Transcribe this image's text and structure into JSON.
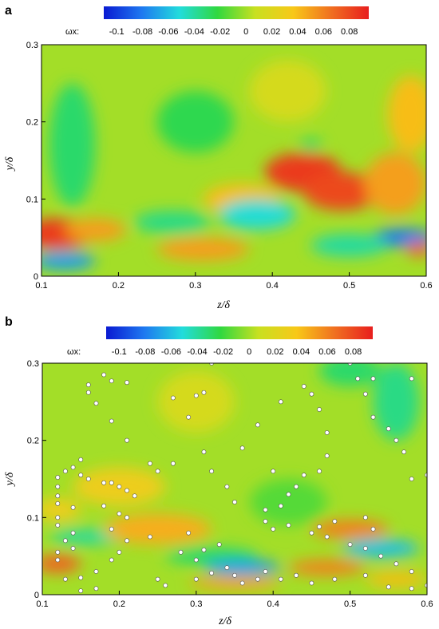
{
  "chart_data": [
    {
      "type": "heatmap",
      "panel_label": "a",
      "xlabel": "z/δ",
      "ylabel": "y/δ",
      "colorbar_label": "ωx:",
      "xlim": [
        0.1,
        0.6
      ],
      "ylim": [
        0,
        0.3
      ],
      "x_ticks": [
        "0.1",
        "0.2",
        "0.3",
        "0.4",
        "0.5",
        "0.6"
      ],
      "y_ticks": [
        "0",
        "0.1",
        "0.2",
        "0.3"
      ],
      "colorbar_ticks": [
        "-0.1",
        "-0.08",
        "-0.06",
        "-0.04",
        "-0.02",
        "0",
        "0.02",
        "0.04",
        "0.06",
        "0.08"
      ],
      "colorbar_range": [
        -0.11,
        0.095
      ],
      "colormap": [
        "#0a1ad2",
        "#1e78f0",
        "#22dcdc",
        "#30d840",
        "#c8e020",
        "#f8c818",
        "#f07020",
        "#e81e1e"
      ],
      "background_value": 0.0,
      "features": [
        {
          "z": 0.12,
          "y": 0.055,
          "value": 0.085,
          "rz": 0.045,
          "ry": 0.02
        },
        {
          "z": 0.17,
          "y": 0.06,
          "value": 0.05,
          "rz": 0.04,
          "ry": 0.015
        },
        {
          "z": 0.13,
          "y": 0.02,
          "value": -0.07,
          "rz": 0.04,
          "ry": 0.012
        },
        {
          "z": 0.14,
          "y": 0.17,
          "value": -0.03,
          "rz": 0.03,
          "ry": 0.08
        },
        {
          "z": 0.31,
          "y": 0.035,
          "value": 0.05,
          "rz": 0.06,
          "ry": 0.015
        },
        {
          "z": 0.36,
          "y": 0.1,
          "value": 0.04,
          "rz": 0.05,
          "ry": 0.02
        },
        {
          "z": 0.27,
          "y": 0.07,
          "value": -0.035,
          "rz": 0.05,
          "ry": 0.015
        },
        {
          "z": 0.38,
          "y": 0.08,
          "value": -0.05,
          "rz": 0.05,
          "ry": 0.02
        },
        {
          "z": 0.3,
          "y": 0.2,
          "value": -0.025,
          "rz": 0.05,
          "ry": 0.04
        },
        {
          "z": 0.44,
          "y": 0.135,
          "value": 0.085,
          "rz": 0.05,
          "ry": 0.025
        },
        {
          "z": 0.49,
          "y": 0.11,
          "value": 0.08,
          "rz": 0.05,
          "ry": 0.025
        },
        {
          "z": 0.56,
          "y": 0.12,
          "value": 0.05,
          "rz": 0.04,
          "ry": 0.04
        },
        {
          "z": 0.58,
          "y": 0.21,
          "value": 0.04,
          "rz": 0.03,
          "ry": 0.05
        },
        {
          "z": 0.57,
          "y": 0.05,
          "value": -0.08,
          "rz": 0.04,
          "ry": 0.012
        },
        {
          "z": 0.5,
          "y": 0.04,
          "value": -0.04,
          "rz": 0.05,
          "ry": 0.015
        },
        {
          "z": 0.45,
          "y": 0.17,
          "value": -0.03,
          "rz": 0.015,
          "ry": 0.008
        },
        {
          "z": 0.59,
          "y": 0.035,
          "value": 0.07,
          "rz": 0.015,
          "ry": 0.01
        },
        {
          "z": 0.42,
          "y": 0.24,
          "value": 0.015,
          "rz": 0.05,
          "ry": 0.04
        }
      ]
    },
    {
      "type": "heatmap",
      "panel_label": "b",
      "xlabel": "z/δ",
      "ylabel": "y/δ",
      "colorbar_label": "ωx:",
      "xlim": [
        0.1,
        0.6
      ],
      "ylim": [
        0,
        0.3
      ],
      "x_ticks": [
        "0.1",
        "0.2",
        "0.3",
        "0.4",
        "0.5",
        "0.6"
      ],
      "y_ticks": [
        "0",
        "0.1",
        "0.2",
        "0.3"
      ],
      "colorbar_ticks": [
        "-0.1",
        "-0.08",
        "-0.06",
        "-0.04",
        "-0.02",
        "0",
        "0.02",
        "0.04",
        "0.06",
        "0.08"
      ],
      "colorbar_range": [
        -0.11,
        0.095
      ],
      "colormap": [
        "#0a1ad2",
        "#1e78f0",
        "#22dcdc",
        "#30d840",
        "#c8e020",
        "#f8c818",
        "#f07020",
        "#e81e1e"
      ],
      "background_value": 0.0,
      "features": [
        {
          "z": 0.12,
          "y": 0.04,
          "value": 0.07,
          "rz": 0.03,
          "ry": 0.012
        },
        {
          "z": 0.16,
          "y": 0.075,
          "value": -0.04,
          "rz": 0.05,
          "ry": 0.01
        },
        {
          "z": 0.25,
          "y": 0.085,
          "value": 0.045,
          "rz": 0.07,
          "ry": 0.02
        },
        {
          "z": 0.2,
          "y": 0.14,
          "value": 0.03,
          "rz": 0.06,
          "ry": 0.025
        },
        {
          "z": 0.32,
          "y": 0.05,
          "value": -0.03,
          "rz": 0.06,
          "ry": 0.012
        },
        {
          "z": 0.36,
          "y": 0.035,
          "value": -0.07,
          "rz": 0.05,
          "ry": 0.01
        },
        {
          "z": 0.35,
          "y": 0.015,
          "value": 0.05,
          "rz": 0.06,
          "ry": 0.008
        },
        {
          "z": 0.5,
          "y": 0.085,
          "value": 0.06,
          "rz": 0.05,
          "ry": 0.012
        },
        {
          "z": 0.54,
          "y": 0.06,
          "value": -0.06,
          "rz": 0.05,
          "ry": 0.012
        },
        {
          "z": 0.47,
          "y": 0.035,
          "value": 0.06,
          "rz": 0.05,
          "ry": 0.01
        },
        {
          "z": 0.56,
          "y": 0.02,
          "value": 0.04,
          "rz": 0.04,
          "ry": 0.01
        },
        {
          "z": 0.56,
          "y": 0.25,
          "value": -0.035,
          "rz": 0.03,
          "ry": 0.05
        },
        {
          "z": 0.5,
          "y": 0.29,
          "value": -0.03,
          "rz": 0.04,
          "ry": 0.02
        },
        {
          "z": 0.3,
          "y": 0.25,
          "value": 0.015,
          "rz": 0.05,
          "ry": 0.04
        },
        {
          "z": 0.42,
          "y": 0.12,
          "value": -0.015,
          "rz": 0.05,
          "ry": 0.03
        },
        {
          "z": 0.12,
          "y": 0.11,
          "value": 0.03,
          "rz": 0.03,
          "ry": 0.015
        }
      ],
      "particles": [
        [
          0.18,
          0.285
        ],
        [
          0.19,
          0.277
        ],
        [
          0.16,
          0.272
        ],
        [
          0.21,
          0.275
        ],
        [
          0.16,
          0.262
        ],
        [
          0.17,
          0.248
        ],
        [
          0.32,
          0.3
        ],
        [
          0.31,
          0.262
        ],
        [
          0.3,
          0.258
        ],
        [
          0.27,
          0.255
        ],
        [
          0.29,
          0.23
        ],
        [
          0.19,
          0.225
        ],
        [
          0.21,
          0.2
        ],
        [
          0.31,
          0.185
        ],
        [
          0.27,
          0.17
        ],
        [
          0.24,
          0.17
        ],
        [
          0.25,
          0.16
        ],
        [
          0.15,
          0.175
        ],
        [
          0.14,
          0.165
        ],
        [
          0.13,
          0.16
        ],
        [
          0.15,
          0.155
        ],
        [
          0.16,
          0.15
        ],
        [
          0.12,
          0.152
        ],
        [
          0.12,
          0.14
        ],
        [
          0.18,
          0.145
        ],
        [
          0.2,
          0.14
        ],
        [
          0.21,
          0.135
        ],
        [
          0.22,
          0.128
        ],
        [
          0.12,
          0.128
        ],
        [
          0.12,
          0.118
        ],
        [
          0.14,
          0.113
        ],
        [
          0.12,
          0.1
        ],
        [
          0.12,
          0.09
        ],
        [
          0.14,
          0.08
        ],
        [
          0.13,
          0.07
        ],
        [
          0.14,
          0.06
        ],
        [
          0.12,
          0.055
        ],
        [
          0.12,
          0.045
        ],
        [
          0.19,
          0.145
        ],
        [
          0.18,
          0.115
        ],
        [
          0.2,
          0.105
        ],
        [
          0.21,
          0.1
        ],
        [
          0.19,
          0.085
        ],
        [
          0.21,
          0.07
        ],
        [
          0.24,
          0.075
        ],
        [
          0.29,
          0.08
        ],
        [
          0.33,
          0.065
        ],
        [
          0.31,
          0.058
        ],
        [
          0.28,
          0.055
        ],
        [
          0.3,
          0.045
        ],
        [
          0.32,
          0.028
        ],
        [
          0.3,
          0.02
        ],
        [
          0.25,
          0.02
        ],
        [
          0.26,
          0.012
        ],
        [
          0.2,
          0.055
        ],
        [
          0.19,
          0.045
        ],
        [
          0.17,
          0.03
        ],
        [
          0.15,
          0.022
        ],
        [
          0.13,
          0.02
        ],
        [
          0.15,
          0.005
        ],
        [
          0.17,
          0.008
        ],
        [
          0.36,
          0.19
        ],
        [
          0.38,
          0.22
        ],
        [
          0.41,
          0.25
        ],
        [
          0.44,
          0.27
        ],
        [
          0.45,
          0.26
        ],
        [
          0.46,
          0.24
        ],
        [
          0.47,
          0.21
        ],
        [
          0.47,
          0.18
        ],
        [
          0.46,
          0.16
        ],
        [
          0.44,
          0.155
        ],
        [
          0.43,
          0.14
        ],
        [
          0.42,
          0.13
        ],
        [
          0.41,
          0.115
        ],
        [
          0.39,
          0.11
        ],
        [
          0.35,
          0.12
        ],
        [
          0.34,
          0.14
        ],
        [
          0.32,
          0.16
        ],
        [
          0.4,
          0.16
        ],
        [
          0.51,
          0.28
        ],
        [
          0.52,
          0.26
        ],
        [
          0.53,
          0.23
        ],
        [
          0.55,
          0.215
        ],
        [
          0.56,
          0.2
        ],
        [
          0.57,
          0.185
        ],
        [
          0.58,
          0.15
        ],
        [
          0.6,
          0.155
        ],
        [
          0.5,
          0.3
        ],
        [
          0.53,
          0.28
        ],
        [
          0.58,
          0.28
        ],
        [
          0.52,
          0.1
        ],
        [
          0.53,
          0.085
        ],
        [
          0.48,
          0.095
        ],
        [
          0.46,
          0.088
        ],
        [
          0.45,
          0.08
        ],
        [
          0.47,
          0.075
        ],
        [
          0.5,
          0.065
        ],
        [
          0.52,
          0.06
        ],
        [
          0.54,
          0.05
        ],
        [
          0.56,
          0.04
        ],
        [
          0.58,
          0.03
        ],
        [
          0.52,
          0.025
        ],
        [
          0.48,
          0.02
        ],
        [
          0.45,
          0.015
        ],
        [
          0.41,
          0.02
        ],
        [
          0.43,
          0.025
        ],
        [
          0.39,
          0.03
        ],
        [
          0.38,
          0.02
        ],
        [
          0.36,
          0.015
        ],
        [
          0.35,
          0.025
        ],
        [
          0.34,
          0.035
        ],
        [
          0.4,
          0.085
        ],
        [
          0.42,
          0.09
        ],
        [
          0.39,
          0.095
        ],
        [
          0.55,
          0.01
        ],
        [
          0.58,
          0.008
        ],
        [
          0.6,
          0.012
        ]
      ]
    }
  ]
}
